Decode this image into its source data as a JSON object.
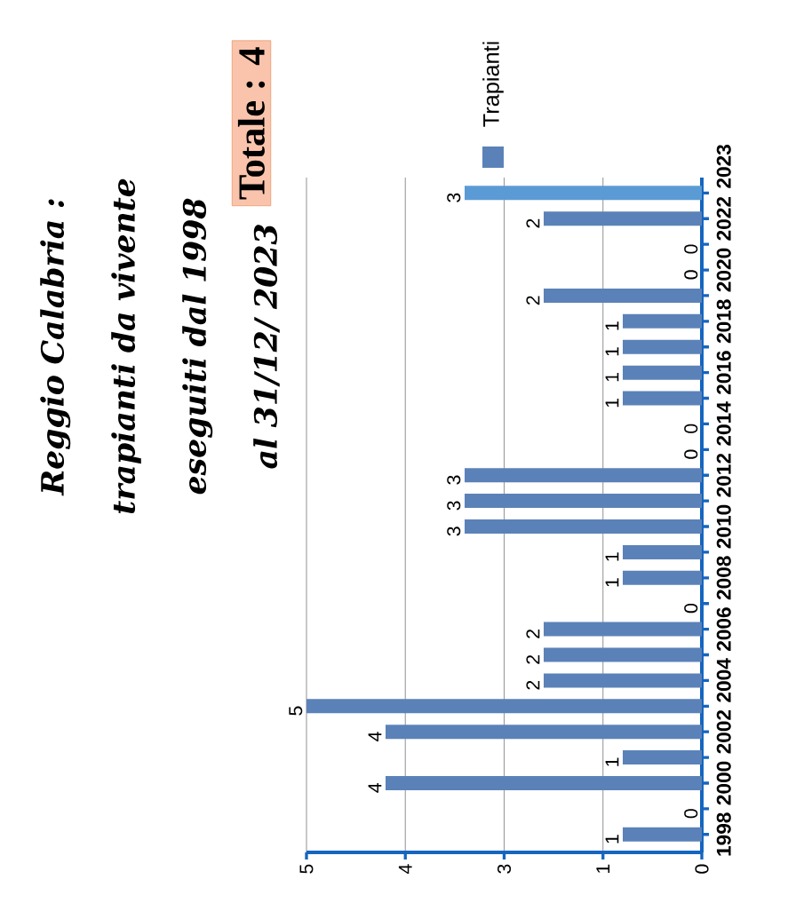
{
  "chart_data": {
    "type": "bar",
    "orientation": "horizontal",
    "title": "Reggio Calabria : trapianti da vivente eseguiti dal 1998 al 31/12/ 2023",
    "categories": [
      "2023",
      "2022",
      null,
      "2020",
      null,
      "2018",
      null,
      "2016",
      null,
      "2014",
      null,
      "2012",
      null,
      "2010",
      null,
      "2008",
      null,
      "2006",
      null,
      "2004",
      null,
      "2002",
      null,
      "2000",
      null,
      "1998"
    ],
    "series": [
      {
        "name": "Trapianti",
        "color": "#5b82b8",
        "values": [
          3,
          2,
          0,
          0,
          2,
          1,
          1,
          1,
          1,
          0,
          0,
          3,
          3,
          3,
          1,
          1,
          0,
          2,
          2,
          2,
          5,
          4,
          1,
          4,
          0,
          1
        ],
        "colors": [
          "#5b9bd5",
          "#5b82b8",
          "#5b82b8",
          "#5b82b8",
          "#5b82b8",
          "#5b82b8",
          "#5b82b8",
          "#5b82b8",
          "#5b82b8",
          "#5b82b8",
          "#5b82b8",
          "#5b82b8",
          "#5b82b8",
          "#5b82b8",
          "#5b82b8",
          "#5b82b8",
          "#5b82b8",
          "#5b82b8",
          "#5b82b8",
          "#5b82b8",
          "#5b82b8",
          "#5b82b8",
          "#5b82b8",
          "#5b82b8",
          "#5b82b8",
          "#5b82b8"
        ]
      }
    ],
    "xlim": [
      5,
      0
    ],
    "xticks": [
      {
        "value": 5,
        "label": "5"
      },
      {
        "value": 3.75,
        "label": "4"
      },
      {
        "value": 2.5,
        "label": "3"
      },
      {
        "value": 1.25,
        "label": "1"
      },
      {
        "value": 0,
        "label": "0"
      }
    ],
    "grid": "x",
    "data_labels": true,
    "legend": "top",
    "annotations": [
      "Totale : 4"
    ]
  }
}
